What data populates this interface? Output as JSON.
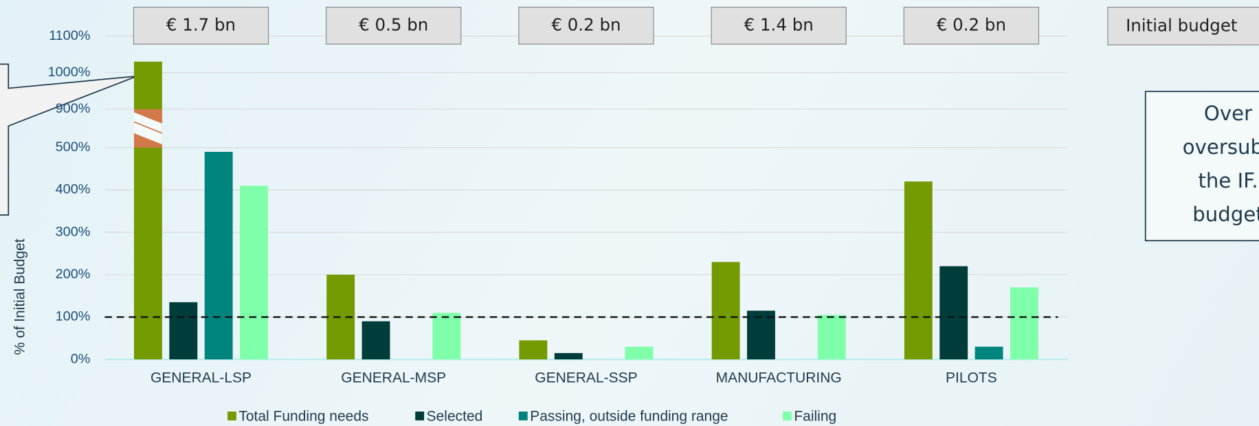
{
  "chart_data": {
    "type": "bar",
    "y_axis_label": "% of Initial Budget",
    "categories": [
      "GENERAL-LSP",
      "GENERAL-MSP",
      "GENERAL-SSP",
      "MANUFACTURING",
      "PILOTS"
    ],
    "series": [
      {
        "name": "Total Funding needs",
        "color": "#739a00",
        "values": [
          1030,
          200,
          45,
          230,
          420
        ]
      },
      {
        "name": "Selected",
        "color": "#003c3a",
        "values": [
          135,
          90,
          15,
          115,
          220
        ]
      },
      {
        "name": "Passing, outside funding range",
        "color": "#00857e",
        "values": [
          490,
          0,
          0,
          0,
          30
        ]
      },
      {
        "name": "Failing",
        "color": "#80ffaa",
        "values": [
          410,
          110,
          30,
          105,
          170
        ]
      }
    ],
    "ylim": [
      0,
      1100
    ],
    "axis_break": [
      500,
      900
    ],
    "yticks": [
      {
        "value": 0,
        "label": "0%"
      },
      {
        "value": 100,
        "label": "100%"
      },
      {
        "value": 200,
        "label": "200%"
      },
      {
        "value": 300,
        "label": "300%"
      },
      {
        "value": 400,
        "label": "400%"
      },
      {
        "value": 500,
        "label": "500%"
      },
      {
        "value": 900,
        "label": "900%"
      },
      {
        "value": 1000,
        "label": "1000%"
      },
      {
        "value": 1100,
        "label": "1100%"
      }
    ],
    "grid": true,
    "reference_line": 100,
    "budget_labels": [
      "€ 1.7 bn",
      "€ 0.5 bn",
      "€ 0.2 bn",
      "€ 1.4 bn",
      "€ 0.2 bn"
    ],
    "budget_legend": "Initial budget",
    "annotation": [
      "Over",
      "oversubs",
      "the IF.",
      "budget"
    ],
    "legend": "bottom"
  }
}
